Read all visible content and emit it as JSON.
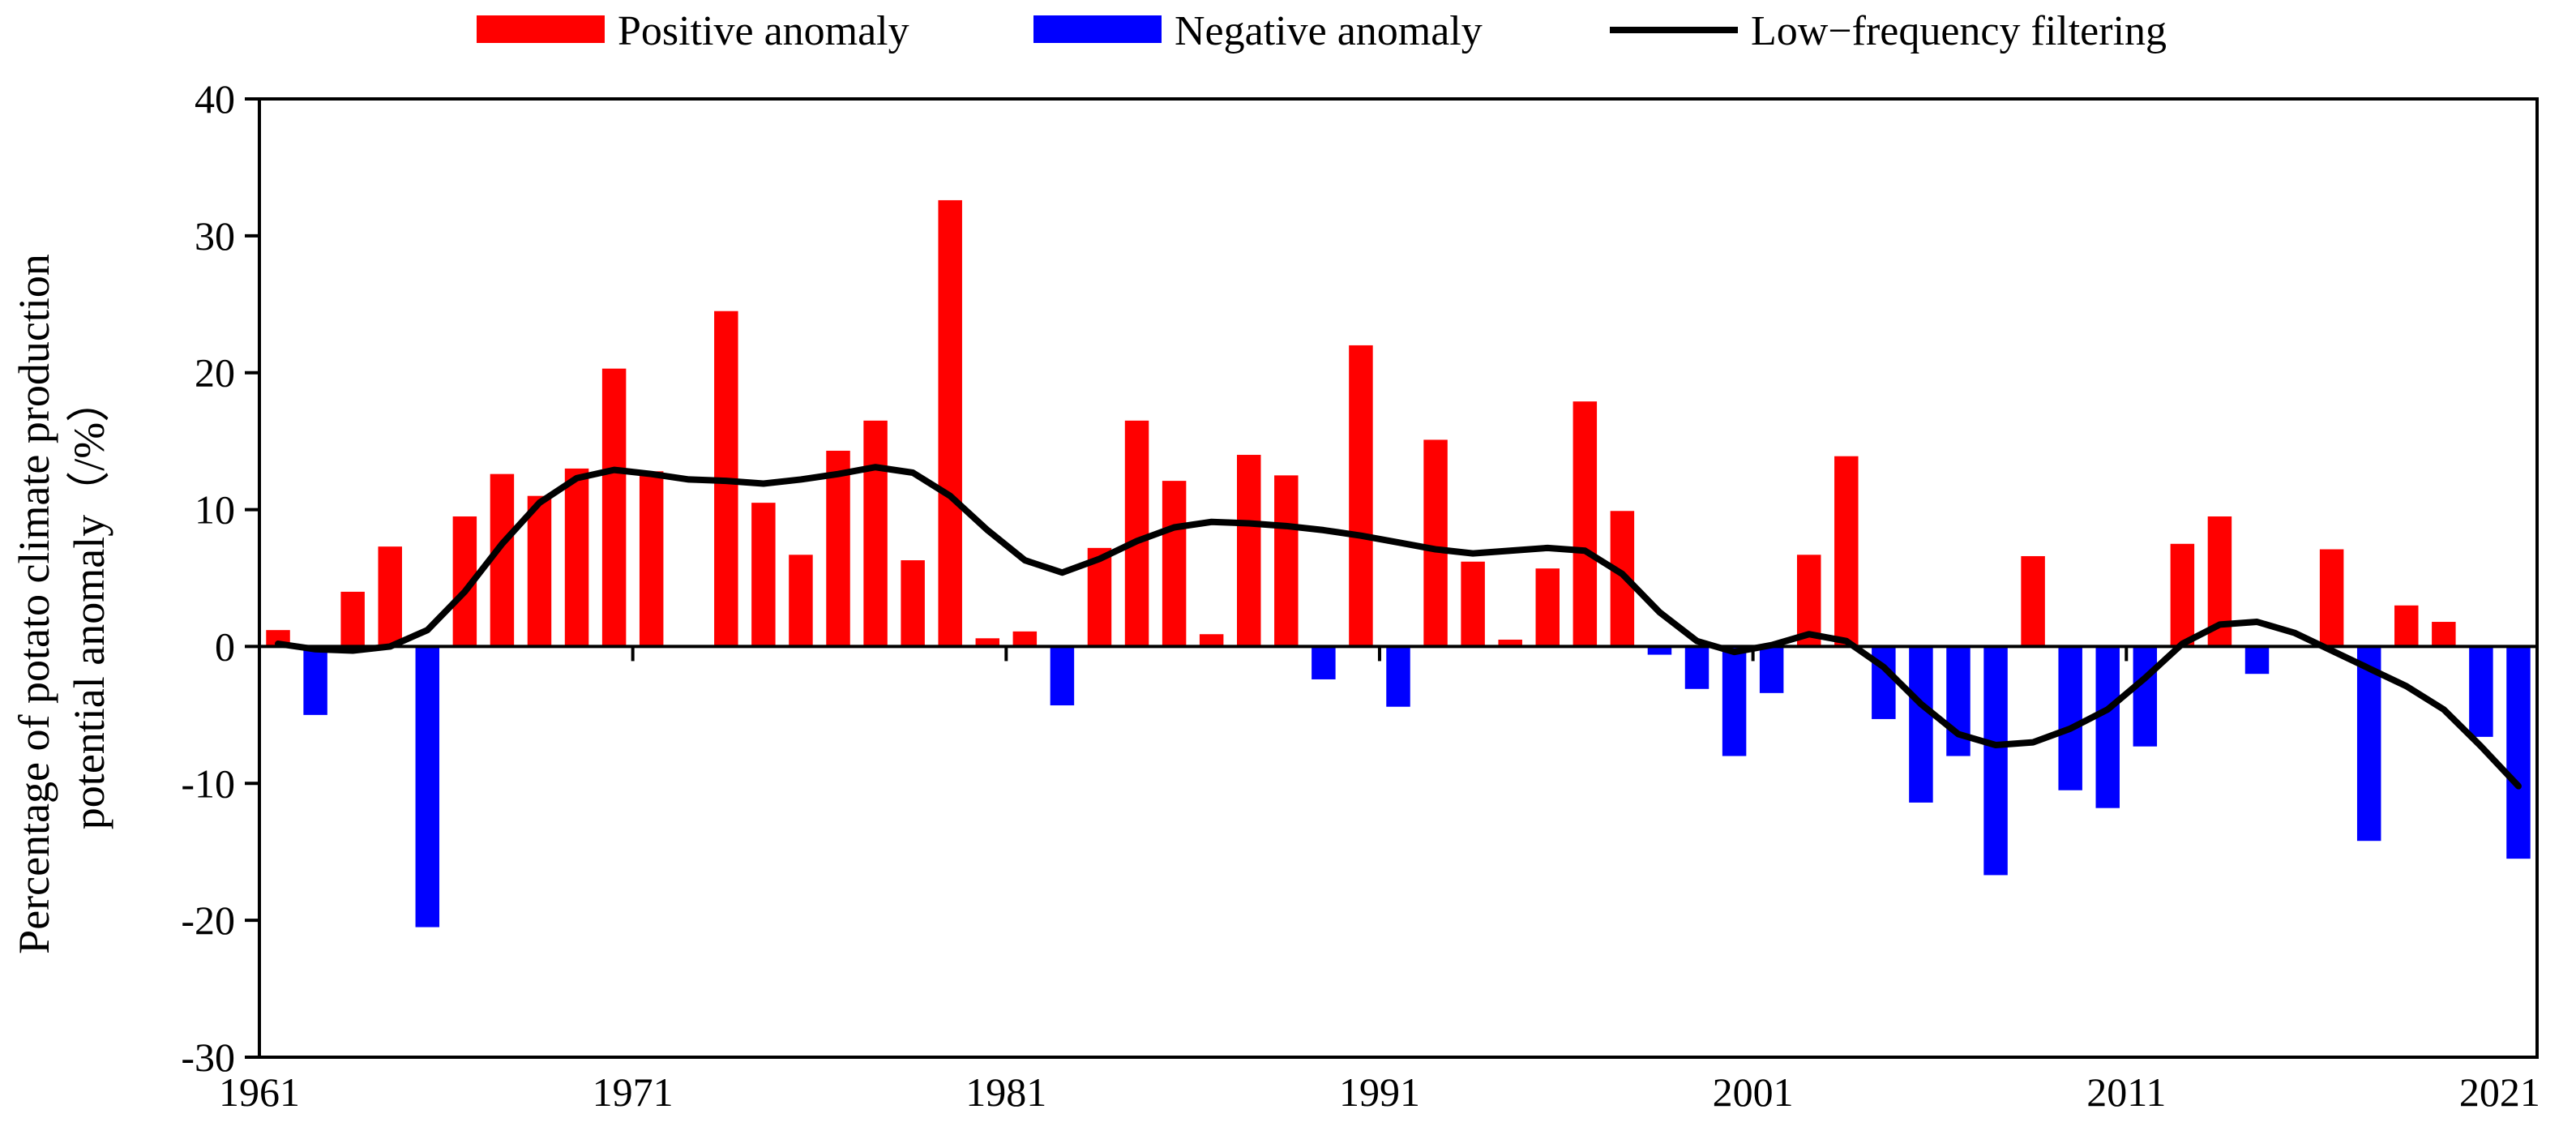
{
  "chart_data": {
    "type": "bar",
    "title": "",
    "xlabel": "",
    "ylabel": "Percentage of potato climate production",
    "ylabel_line2": "potential anomaly（/%）",
    "ylim": [
      -30,
      40
    ],
    "yticks": [
      -30,
      -20,
      -10,
      0,
      10,
      20,
      30,
      40
    ],
    "xtick_labels": [
      "1961",
      "1971",
      "1981",
      "1991",
      "2001",
      "2011",
      "2021"
    ],
    "legend": {
      "position": "top",
      "positive": "Positive anomaly",
      "negative": "Negative anomaly",
      "line": "Low−frequency filtering"
    },
    "colors": {
      "positive": "#ff0000",
      "negative": "#0000ff",
      "line": "#000000"
    },
    "years": [
      1961,
      1962,
      1963,
      1964,
      1965,
      1966,
      1967,
      1968,
      1969,
      1970,
      1971,
      1972,
      1973,
      1974,
      1975,
      1976,
      1977,
      1978,
      1979,
      1980,
      1981,
      1982,
      1983,
      1984,
      1985,
      1986,
      1987,
      1988,
      1989,
      1990,
      1991,
      1992,
      1993,
      1994,
      1995,
      1996,
      1997,
      1998,
      1999,
      2000,
      2001,
      2002,
      2003,
      2004,
      2005,
      2006,
      2007,
      2008,
      2009,
      2010,
      2011,
      2012,
      2013,
      2014,
      2015,
      2016,
      2017,
      2018,
      2019,
      2020,
      2021
    ],
    "series": [
      {
        "name": "Anomaly",
        "values": [
          1.2,
          -5.0,
          4.0,
          7.3,
          -20.5,
          9.5,
          12.6,
          11.0,
          13.0,
          20.3,
          12.8,
          0,
          24.5,
          10.5,
          6.7,
          14.3,
          16.5,
          6.3,
          32.6,
          0.6,
          1.1,
          -4.3,
          7.2,
          16.5,
          12.1,
          0.9,
          14.0,
          12.5,
          -2.4,
          22.0,
          -4.4,
          15.1,
          6.2,
          0.5,
          5.7,
          17.9,
          9.9,
          -0.6,
          -3.1,
          -8.0,
          -3.4,
          6.7,
          13.9,
          -5.3,
          -11.4,
          -8.0,
          -16.7,
          6.6,
          -10.5,
          -11.8,
          -7.3,
          7.5,
          9.5,
          -2.0,
          0,
          7.1,
          -14.2,
          3.0,
          1.8,
          -6.6,
          -15.5
        ]
      },
      {
        "name": "Low−frequency filtering",
        "values": [
          0.2,
          -0.2,
          -0.3,
          0,
          1.2,
          4.0,
          7.5,
          10.5,
          12.3,
          12.9,
          12.6,
          12.2,
          12.1,
          11.9,
          12.2,
          12.6,
          13.1,
          12.7,
          11.0,
          8.5,
          6.3,
          5.4,
          6.4,
          7.7,
          8.7,
          9.1,
          9.0,
          8.8,
          8.5,
          8.1,
          7.6,
          7.1,
          6.8,
          7.0,
          7.2,
          7.0,
          5.3,
          2.5,
          0.4,
          -0.4,
          0.1,
          0.9,
          0.4,
          -1.5,
          -4.2,
          -6.4,
          -7.2,
          -7.0,
          -6.0,
          -4.6,
          -2.3,
          0.2,
          1.6,
          1.8,
          1.0,
          -0.3,
          -1.6,
          -2.9,
          -4.6,
          -7.3,
          -10.2
        ]
      }
    ]
  }
}
